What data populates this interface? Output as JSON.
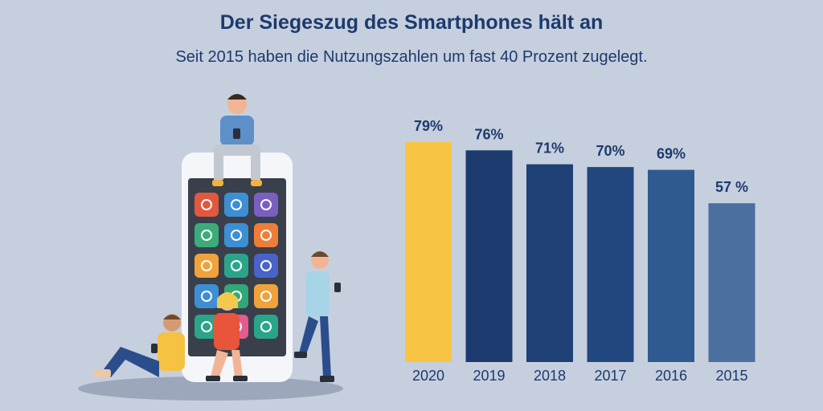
{
  "header": {
    "title": "Der Siegeszug des Smartphones hält an",
    "subtitle": "Seit 2015 haben die Nutzungszahlen um fast 40 Prozent zugelegt."
  },
  "chart_data": {
    "type": "bar",
    "categories": [
      "2020",
      "2019",
      "2018",
      "2017",
      "2016",
      "2015"
    ],
    "values": [
      79,
      76,
      71,
      70,
      69,
      57
    ],
    "value_labels": [
      "79%",
      "76%",
      "71%",
      "70%",
      "69%",
      "57 %"
    ],
    "bar_colors": [
      "#f8c444",
      "#1c3a6e",
      "#1f4075",
      "#22477f",
      "#2f5a8f",
      "#4b6f9e"
    ],
    "ylim": [
      0,
      100
    ],
    "grid": false,
    "legend": "none"
  },
  "colors": {
    "background": "#c6cfde",
    "text": "#1d3a6e",
    "highlight": "#f8c444"
  },
  "illustration": {
    "icons": [
      "wifi-icon",
      "globe-icon",
      "clock-icon",
      "lightbulb-icon",
      "mail-icon",
      "chat-icon",
      "cloud-icon",
      "search-icon",
      "plane-icon",
      "settings-icon",
      "music-icon",
      "location-icon",
      "home-icon",
      "image-icon",
      "gears-icon"
    ]
  }
}
